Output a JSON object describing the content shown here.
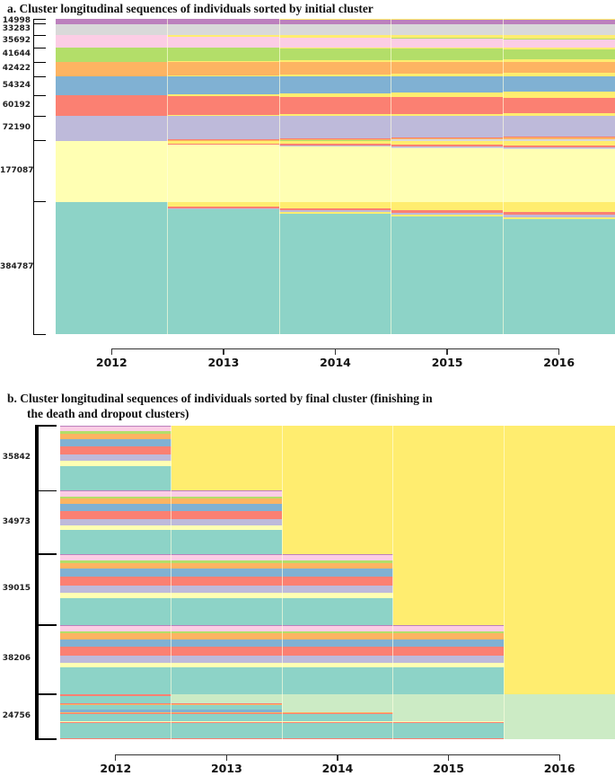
{
  "figure": {
    "panel_a_title": "a. Cluster longitudinal sequences of individuals sorted by initial cluster",
    "panel_b_title_line1": "b. Cluster longitudinal sequences of individuals sorted by final cluster (finishing in",
    "panel_b_title_line2": "the death and dropout clusters)"
  },
  "palette": {
    "P": "#bc80bd",
    "GR": "#d9d9d9",
    "PK": "#fccde5",
    "G": "#b3de69",
    "O": "#fdb462",
    "B": "#80b1d3",
    "S": "#fb8072",
    "L": "#bebada",
    "C": "#ffffb3",
    "T": "#8dd3c7",
    "Y": "#ffed6f",
    "DG": "#ccebc5"
  },
  "states": {
    "Y": "death cluster (bright yellow)",
    "DG": "dropout cluster (light green)",
    "others": "ten longitudinal clusters keyed P,GR,PK,G,O,B,S,L,C,T"
  },
  "chart_data": [
    {
      "type": "sequence-index",
      "panel": "a",
      "title": "a. Cluster longitudinal sequences of individuals sorted by initial cluster",
      "x_tick_labels": [
        "2012",
        "2013",
        "2014",
        "2015",
        "2016"
      ],
      "x_range": [
        2011.5,
        2016.5
      ],
      "grid": "faint vertical lines at mid-year column boundaries",
      "legend": "none",
      "clusters": [
        {
          "label": "14998",
          "size": 14998,
          "columns": [
            [
              [
                "P",
                1
              ]
            ],
            [
              [
                "Y",
                0.06
              ],
              [
                "P",
                0.94
              ]
            ],
            [
              [
                "Y",
                0.1
              ],
              [
                "P",
                0.9
              ]
            ],
            [
              [
                "Y",
                0.14
              ],
              [
                "P",
                0.86
              ]
            ],
            [
              [
                "Y",
                0.18
              ],
              [
                "P",
                0.82
              ]
            ]
          ]
        },
        {
          "label": "33283",
          "size": 33283,
          "columns": [
            [
              [
                "GR",
                1
              ]
            ],
            [
              [
                "GR",
                1
              ]
            ],
            [
              [
                "GR",
                0.98
              ],
              [
                "Y",
                0.02
              ]
            ],
            [
              [
                "GR",
                0.97
              ],
              [
                "Y",
                0.03
              ]
            ],
            [
              [
                "GR",
                0.96
              ],
              [
                "Y",
                0.04
              ]
            ]
          ]
        },
        {
          "label": "35692",
          "size": 35692,
          "columns": [
            [
              [
                "PK",
                1
              ]
            ],
            [
              [
                "Y",
                0.08
              ],
              [
                "PK",
                0.92
              ]
            ],
            [
              [
                "Y",
                0.16
              ],
              [
                "G",
                0.05
              ],
              [
                "PK",
                0.79
              ]
            ],
            [
              [
                "Y",
                0.2
              ],
              [
                "G",
                0.05
              ],
              [
                "PK",
                0.75
              ]
            ],
            [
              [
                "Y",
                0.24
              ],
              [
                "G",
                0.06
              ],
              [
                "PK",
                0.7
              ]
            ]
          ]
        },
        {
          "label": "41644",
          "size": 41644,
          "columns": [
            [
              [
                "G",
                1
              ]
            ],
            [
              [
                "G",
                0.94
              ],
              [
                "Y",
                0.06
              ]
            ],
            [
              [
                "Y",
                0.05
              ],
              [
                "G",
                0.84
              ],
              [
                "Y",
                0.11
              ]
            ],
            [
              [
                "Y",
                0.08
              ],
              [
                "G",
                0.77
              ],
              [
                "Y",
                0.15
              ]
            ],
            [
              [
                "Y",
                0.1
              ],
              [
                "G",
                0.71
              ],
              [
                "Y",
                0.19
              ]
            ]
          ]
        },
        {
          "label": "42422",
          "size": 42422,
          "columns": [
            [
              [
                "O",
                1
              ]
            ],
            [
              [
                "O",
                0.92
              ],
              [
                "Y",
                0.08
              ]
            ],
            [
              [
                "O",
                0.86
              ],
              [
                "Y",
                0.14
              ]
            ],
            [
              [
                "O",
                0.8
              ],
              [
                "Y",
                0.2
              ]
            ],
            [
              [
                "O",
                0.75
              ],
              [
                "Y",
                0.25
              ]
            ]
          ]
        },
        {
          "label": "54324",
          "size": 54324,
          "columns": [
            [
              [
                "B",
                1
              ]
            ],
            [
              [
                "B",
                0.94
              ],
              [
                "Y",
                0.06
              ]
            ],
            [
              [
                "B",
                0.88
              ],
              [
                "Y",
                0.12
              ]
            ],
            [
              [
                "B",
                0.83
              ],
              [
                "Y",
                0.17
              ]
            ],
            [
              [
                "B",
                0.78
              ],
              [
                "Y",
                0.22
              ]
            ]
          ]
        },
        {
          "label": "60192",
          "size": 60192,
          "columns": [
            [
              [
                "S",
                1
              ]
            ],
            [
              [
                "Y",
                0.05
              ],
              [
                "S",
                0.9
              ],
              [
                "Y",
                0.05
              ]
            ],
            [
              [
                "Y",
                0.08
              ],
              [
                "S",
                0.84
              ],
              [
                "Y",
                0.08
              ]
            ],
            [
              [
                "Y",
                0.1
              ],
              [
                "S",
                0.8
              ],
              [
                "Y",
                0.1
              ]
            ],
            [
              [
                "Y",
                0.12
              ],
              [
                "S",
                0.76
              ],
              [
                "Y",
                0.12
              ]
            ]
          ]
        },
        {
          "label": "72190",
          "size": 72190,
          "columns": [
            [
              [
                "L",
                1
              ]
            ],
            [
              [
                "L",
                0.95
              ],
              [
                "S",
                0.03
              ],
              [
                "O",
                0.02
              ]
            ],
            [
              [
                "L",
                0.9
              ],
              [
                "S",
                0.04
              ],
              [
                "O",
                0.03
              ],
              [
                "G",
                0.03
              ]
            ],
            [
              [
                "L",
                0.86
              ],
              [
                "S",
                0.04
              ],
              [
                "O",
                0.04
              ],
              [
                "GR",
                0.06
              ]
            ],
            [
              [
                "L",
                0.82
              ],
              [
                "S",
                0.05
              ],
              [
                "O",
                0.05
              ],
              [
                "GR",
                0.08
              ]
            ]
          ]
        },
        {
          "label": "177087",
          "size": 177087,
          "columns": [
            [
              [
                "C",
                1
              ]
            ],
            [
              [
                "Y",
                0.04
              ],
              [
                "S",
                0.02
              ],
              [
                "C",
                0.94
              ]
            ],
            [
              [
                "Y",
                0.05
              ],
              [
                "S",
                0.025
              ],
              [
                "L",
                0.015
              ],
              [
                "C",
                0.91
              ]
            ],
            [
              [
                "Y",
                0.06
              ],
              [
                "S",
                0.03
              ],
              [
                "L",
                0.02
              ],
              [
                "GR",
                0.012
              ],
              [
                "C",
                0.878
              ]
            ],
            [
              [
                "Y",
                0.07
              ],
              [
                "S",
                0.03
              ],
              [
                "L",
                0.025
              ],
              [
                "GR",
                0.015
              ],
              [
                "C",
                0.86
              ]
            ]
          ]
        },
        {
          "label": "384787",
          "size": 384787,
          "columns": [
            [
              [
                "T",
                1
              ]
            ],
            [
              [
                "Y",
                0.035
              ],
              [
                "S",
                0.012
              ],
              [
                "L",
                0.012
              ],
              [
                "T",
                0.941
              ]
            ],
            [
              [
                "Y",
                0.05
              ],
              [
                "S",
                0.016
              ],
              [
                "L",
                0.014
              ],
              [
                "Y",
                0.01
              ],
              [
                "T",
                0.91
              ]
            ],
            [
              [
                "Y",
                0.065
              ],
              [
                "S",
                0.018
              ],
              [
                "L",
                0.016
              ],
              [
                "Y",
                0.012
              ],
              [
                "T",
                0.889
              ]
            ],
            [
              [
                "Y",
                0.08
              ],
              [
                "S",
                0.02
              ],
              [
                "L",
                0.018
              ],
              [
                "Y",
                0.013
              ],
              [
                "T",
                0.869
              ]
            ]
          ]
        }
      ]
    },
    {
      "type": "sequence-index",
      "panel": "b",
      "title": "b. Cluster longitudinal sequences of individuals sorted by final cluster (finishing in the death and dropout clusters)",
      "x_tick_labels": [
        "2012",
        "2013",
        "2014",
        "2015",
        "2016"
      ],
      "x_range": [
        2011.5,
        2016.5
      ],
      "grid": "faint vertical lines at mid-year column boundaries",
      "legend": "none",
      "groups": [
        {
          "label": "35842",
          "size": 35842,
          "alive_cols": 1,
          "after": "Y",
          "stack": [
            [
              "P",
              0.012
            ],
            [
              "PK",
              0.075
            ],
            [
              "G",
              0.037
            ],
            [
              "O",
              0.082
            ],
            [
              "B",
              0.11
            ],
            [
              "S",
              0.128
            ],
            [
              "L",
              0.1
            ],
            [
              "C",
              0.073
            ],
            [
              "T",
              0.383
            ]
          ]
        },
        {
          "label": "34973",
          "size": 34973,
          "alive_cols": 2,
          "after": "Y",
          "stack": [
            [
              "P",
              0.012
            ],
            [
              "PK",
              0.075
            ],
            [
              "G",
              0.037
            ],
            [
              "O",
              0.082
            ],
            [
              "B",
              0.11
            ],
            [
              "S",
              0.128
            ],
            [
              "L",
              0.1
            ],
            [
              "C",
              0.073
            ],
            [
              "T",
              0.383
            ]
          ]
        },
        {
          "label": "39015",
          "size": 39015,
          "alive_cols": 3,
          "after": "Y",
          "stack": [
            [
              "P",
              0.012
            ],
            [
              "PK",
              0.075
            ],
            [
              "G",
              0.037
            ],
            [
              "O",
              0.082
            ],
            [
              "B",
              0.11
            ],
            [
              "S",
              0.128
            ],
            [
              "L",
              0.1
            ],
            [
              "C",
              0.073
            ],
            [
              "T",
              0.383
            ]
          ]
        },
        {
          "label": "38206",
          "size": 38206,
          "alive_cols": 4,
          "after": "Y",
          "stack": [
            [
              "P",
              0.012
            ],
            [
              "PK",
              0.075
            ],
            [
              "G",
              0.037
            ],
            [
              "O",
              0.082
            ],
            [
              "B",
              0.11
            ],
            [
              "S",
              0.128
            ],
            [
              "L",
              0.1
            ],
            [
              "C",
              0.073
            ],
            [
              "T",
              0.383
            ]
          ]
        },
        {
          "label": "24756",
          "size": 24756,
          "after": "DG",
          "subrows": [
            {
              "frac": 0.2,
              "alive_cols": 1,
              "stack": [
                [
                  "S",
                  0.16
                ],
                [
                  "T",
                  0.84
                ]
              ]
            },
            {
              "frac": 0.2,
              "alive_cols": 2,
              "stack": [
                [
                  "S",
                  0.1
                ],
                [
                  "O",
                  0.06
                ],
                [
                  "T",
                  0.54
                ],
                [
                  "B",
                  0.3
                ]
              ]
            },
            {
              "frac": 0.2,
              "alive_cols": 3,
              "stack": [
                [
                  "O",
                  0.1
                ],
                [
                  "S",
                  0.12
                ],
                [
                  "T",
                  0.78
                ]
              ]
            },
            {
              "frac": 0.2,
              "alive_cols": 4,
              "stack": [
                [
                  "C",
                  0.12
                ],
                [
                  "S",
                  0.1
                ],
                [
                  "T",
                  0.78
                ]
              ]
            },
            {
              "frac": 0.2,
              "alive_cols": 4,
              "stack": [
                [
                  "T",
                  0.88
                ],
                [
                  "S",
                  0.12
                ]
              ]
            }
          ]
        }
      ]
    }
  ]
}
